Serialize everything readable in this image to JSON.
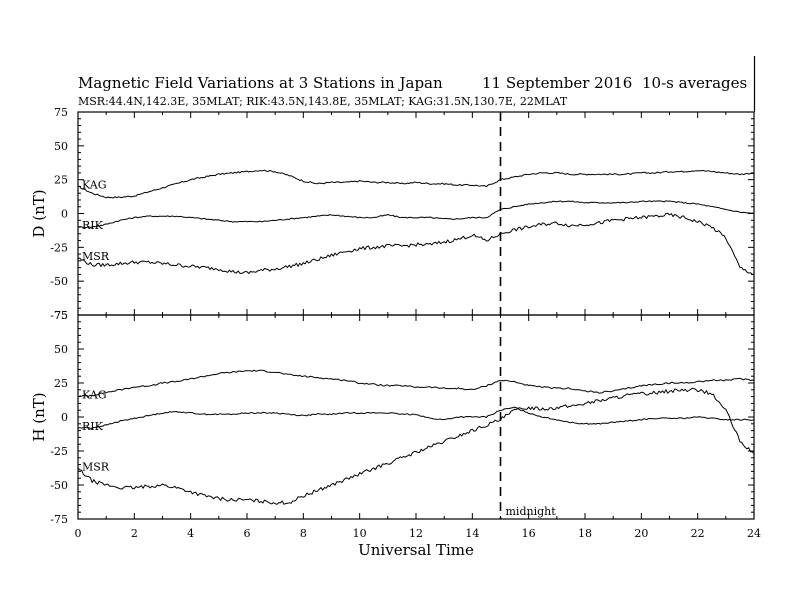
{
  "header": {
    "title": "Magnetic Field Variations at 3 Stations in Japan",
    "date": "11 September 2016",
    "averaging": "10-s averages",
    "stations": "MSR:44.4N,142.3E, 35MLAT;  RIK:43.5N,143.8E, 35MLAT;  KAG:31.5N,130.7E, 22MLAT"
  },
  "chart_data": [
    {
      "type": "line",
      "panel": "top",
      "ylabel": "D (nT)",
      "xlabel": "",
      "xlim": [
        0,
        24
      ],
      "ylim": [
        -75,
        75
      ],
      "yticks": [
        75,
        50,
        25,
        0,
        -25,
        -50,
        -75
      ],
      "xticks": [],
      "grid": false,
      "x": [
        0,
        0.5,
        1,
        1.5,
        2,
        2.5,
        3,
        3.5,
        4,
        4.5,
        5,
        5.5,
        6,
        6.5,
        7,
        7.5,
        8,
        8.5,
        9,
        9.5,
        10,
        10.5,
        11,
        11.5,
        12,
        12.5,
        13,
        13.5,
        14,
        14.5,
        15,
        15.5,
        16,
        16.5,
        17,
        17.5,
        18,
        18.5,
        19,
        19.5,
        20,
        20.5,
        21,
        21.5,
        22,
        22.5,
        23,
        23.5,
        24
      ],
      "series": [
        {
          "name": "KAG",
          "values": [
            20,
            15,
            12,
            12,
            13,
            16,
            19,
            22,
            25,
            27,
            29,
            30,
            31,
            32,
            31,
            28,
            24,
            22,
            23,
            23,
            24,
            23,
            23,
            22,
            23,
            22,
            22,
            21,
            21,
            20,
            25,
            27,
            29,
            30,
            30,
            29,
            29,
            29,
            29,
            29,
            30,
            30,
            31,
            31,
            32,
            31,
            30,
            29,
            30
          ]
        },
        {
          "name": "RIK",
          "values": [
            -10,
            -10,
            -8,
            -5,
            -3,
            -2,
            -2,
            -2,
            -3,
            -4,
            -5,
            -6,
            -6,
            -6,
            -5,
            -4,
            -3,
            -2,
            -1,
            -2,
            -3,
            -3,
            -1,
            -3,
            -3,
            -3,
            -4,
            -4,
            -3,
            -3,
            3,
            5,
            7,
            8,
            9,
            9,
            8,
            8,
            8,
            8,
            9,
            9,
            9,
            8,
            7,
            5,
            3,
            1,
            0
          ]
        },
        {
          "name": "MSR",
          "values": [
            -33,
            -38,
            -38,
            -37,
            -36,
            -36,
            -37,
            -38,
            -39,
            -40,
            -41,
            -43,
            -44,
            -42,
            -41,
            -39,
            -37,
            -34,
            -31,
            -28,
            -26,
            -25,
            -24,
            -24,
            -23,
            -23,
            -21,
            -19,
            -16,
            -20,
            -15,
            -12,
            -10,
            -8,
            -7,
            -9,
            -8,
            -7,
            -5,
            -4,
            -3,
            -2,
            -1,
            -3,
            -6,
            -10,
            -18,
            -40,
            -45
          ]
        }
      ],
      "annotations": []
    },
    {
      "type": "line",
      "panel": "bottom",
      "ylabel": "H (nT)",
      "xlabel": "Universal Time",
      "xlim": [
        0,
        24
      ],
      "ylim": [
        -75,
        75
      ],
      "yticks": [
        75,
        50,
        25,
        0,
        -25,
        -50,
        -75
      ],
      "xticks": [
        0,
        2,
        4,
        6,
        8,
        10,
        12,
        14,
        16,
        18,
        20,
        22,
        24
      ],
      "grid": false,
      "x": [
        0,
        0.5,
        1,
        1.5,
        2,
        2.5,
        3,
        3.5,
        4,
        4.5,
        5,
        5.5,
        6,
        6.5,
        7,
        7.5,
        8,
        8.5,
        9,
        9.5,
        10,
        10.5,
        11,
        11.5,
        12,
        12.5,
        13,
        13.5,
        14,
        14.5,
        15,
        15.5,
        16,
        16.5,
        17,
        17.5,
        18,
        18.5,
        19,
        19.5,
        20,
        20.5,
        21,
        21.5,
        22,
        22.5,
        23,
        23.5,
        24
      ],
      "series": [
        {
          "name": "KAG",
          "values": [
            15,
            16,
            18,
            20,
            22,
            23,
            25,
            26,
            28,
            30,
            32,
            33,
            34,
            34,
            33,
            31,
            30,
            29,
            28,
            27,
            25,
            24,
            23,
            23,
            22,
            22,
            21,
            21,
            20,
            23,
            27,
            26,
            23,
            22,
            21,
            21,
            19,
            18,
            19,
            21,
            23,
            24,
            25,
            25,
            26,
            27,
            27,
            28,
            27
          ]
        },
        {
          "name": "RIK",
          "values": [
            -8,
            -8,
            -6,
            -3,
            -1,
            1,
            3,
            4,
            3,
            2,
            2,
            2,
            3,
            3,
            3,
            2,
            1,
            2,
            2,
            3,
            3,
            3,
            3,
            2,
            2,
            -1,
            -2,
            0,
            0,
            0,
            5,
            7,
            3,
            0,
            -2,
            -4,
            -5,
            -5,
            -4,
            -3,
            -2,
            -1,
            -1,
            -1,
            0,
            -1,
            -2,
            -2,
            -2
          ]
        },
        {
          "name": "MSR",
          "values": [
            -38,
            -47,
            -50,
            -52,
            -52,
            -51,
            -50,
            -52,
            -55,
            -58,
            -60,
            -61,
            -61,
            -62,
            -63,
            -63,
            -58,
            -54,
            -50,
            -46,
            -42,
            -38,
            -34,
            -30,
            -26,
            -22,
            -18,
            -14,
            -10,
            -6,
            -2,
            5,
            7,
            6,
            7,
            8,
            10,
            12,
            14,
            16,
            17,
            18,
            19,
            20,
            20,
            17,
            5,
            -18,
            -27
          ]
        }
      ],
      "annotations": [
        {
          "text": "midnight",
          "x": 15
        }
      ]
    }
  ]
}
